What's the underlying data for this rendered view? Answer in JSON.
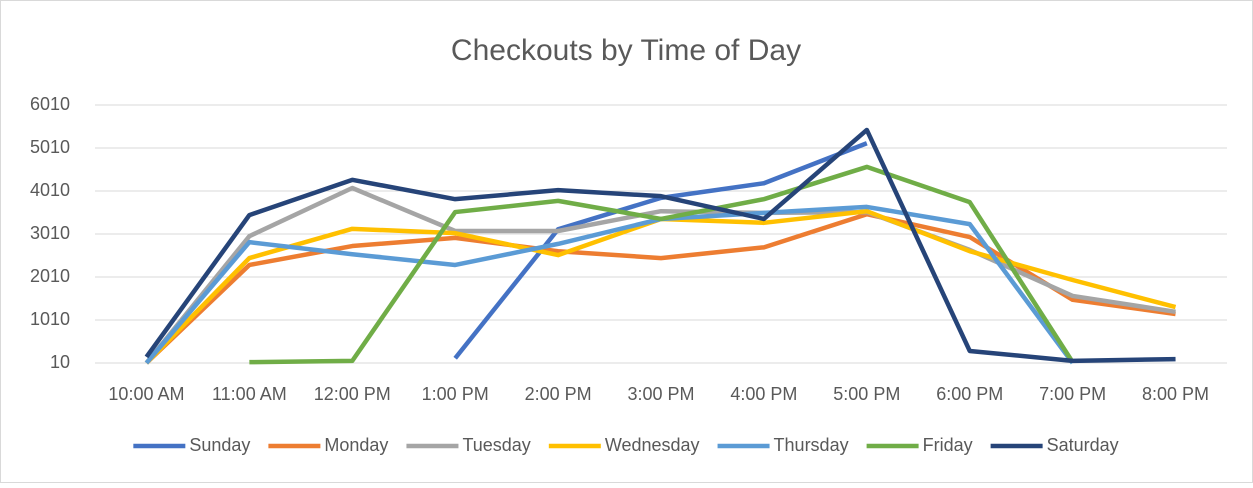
{
  "chart_data": {
    "type": "line",
    "title": "Checkouts by Time of Day",
    "categories": [
      "10:00 AM",
      "11:00 AM",
      "12:00 PM",
      "1:00 PM",
      "2:00 PM",
      "3:00 PM",
      "4:00 PM",
      "5:00 PM",
      "6:00 PM",
      "7:00 PM",
      "8:00 PM"
    ],
    "series": [
      {
        "name": "Sunday",
        "color": "#4472c4",
        "values": [
          null,
          null,
          null,
          120,
          3120,
          3850,
          4190,
          5120,
          null,
          null,
          null
        ]
      },
      {
        "name": "Monday",
        "color": "#ed7d31",
        "values": [
          10,
          2290,
          2730,
          2920,
          2610,
          2450,
          2700,
          3470,
          2940,
          1480,
          1150
        ]
      },
      {
        "name": "Tuesday",
        "color": "#a5a5a5",
        "values": [
          10,
          2960,
          4080,
          3080,
          3080,
          3540,
          3500,
          3520,
          2640,
          1570,
          1200
        ]
      },
      {
        "name": "Wednesday",
        "color": "#ffc000",
        "values": [
          10,
          2450,
          3130,
          3030,
          2520,
          3360,
          3270,
          3540,
          2610,
          1940,
          1310
        ]
      },
      {
        "name": "Thursday",
        "color": "#5b9bd5",
        "values": [
          10,
          2820,
          2540,
          2290,
          2780,
          3360,
          3500,
          3640,
          3240,
          10,
          null
        ]
      },
      {
        "name": "Friday",
        "color": "#70ad47",
        "values": [
          null,
          30,
          60,
          3520,
          3780,
          3360,
          3820,
          4570,
          3750,
          30,
          null
        ]
      },
      {
        "name": "Saturday",
        "color": "#264478",
        "values": [
          150,
          3450,
          4270,
          3820,
          4030,
          3890,
          3360,
          5430,
          290,
          60,
          100
        ]
      }
    ],
    "ylim": [
      10,
      6010
    ],
    "yticks": [
      10,
      1010,
      2010,
      3010,
      4010,
      5010,
      6010
    ],
    "grid": true,
    "legend": "bottom"
  }
}
